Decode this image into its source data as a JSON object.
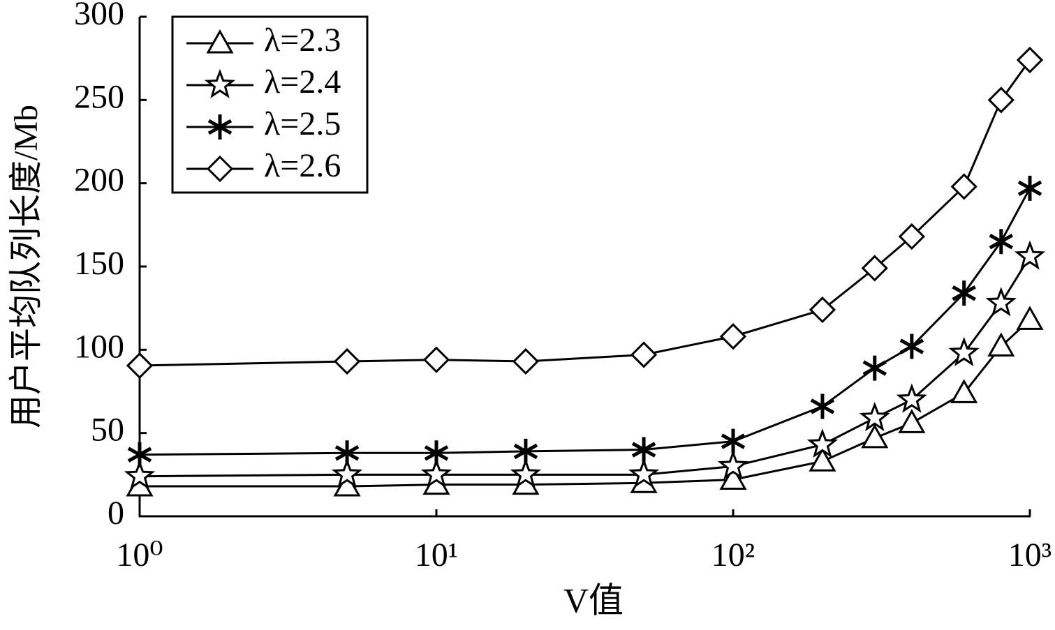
{
  "chart_data": {
    "type": "line",
    "x_label": "V值",
    "y_label": "用户平均队列长度/Mb",
    "x": [
      1,
      5,
      10,
      20,
      50,
      100,
      200,
      300,
      400,
      600,
      800,
      1000
    ],
    "x_log": true,
    "xlim": [
      1,
      1000
    ],
    "xticks": [
      {
        "value": 1,
        "label": "10⁰"
      },
      {
        "value": 10,
        "label": "10¹"
      },
      {
        "value": 100,
        "label": "10²"
      },
      {
        "value": 1000,
        "label": "10³"
      }
    ],
    "ylim": [
      0,
      300
    ],
    "yticks": [
      0,
      50,
      100,
      150,
      200,
      250,
      300
    ],
    "legend": "upper-left",
    "series": [
      {
        "name": "λ=2.3",
        "color": "#000000",
        "marker": "triangle",
        "values": [
          18,
          18,
          19,
          19,
          20,
          22,
          33,
          47,
          56,
          74,
          102,
          118
        ]
      },
      {
        "name": "λ=2.4",
        "color": "#000000",
        "marker": "star",
        "values": [
          24,
          25,
          25,
          25,
          25,
          30,
          43,
          59,
          70,
          98,
          128,
          156
        ]
      },
      {
        "name": "λ=2.5",
        "color": "#000000",
        "marker": "asterisk",
        "values": [
          37,
          38,
          38,
          39,
          40,
          45,
          66,
          89,
          102,
          134,
          165,
          197
        ]
      },
      {
        "name": "λ=2.6",
        "color": "#000000",
        "marker": "diamond",
        "values": [
          90.5,
          93,
          94,
          93,
          97,
          108,
          124,
          149,
          168,
          198,
          250,
          274
        ]
      }
    ]
  }
}
